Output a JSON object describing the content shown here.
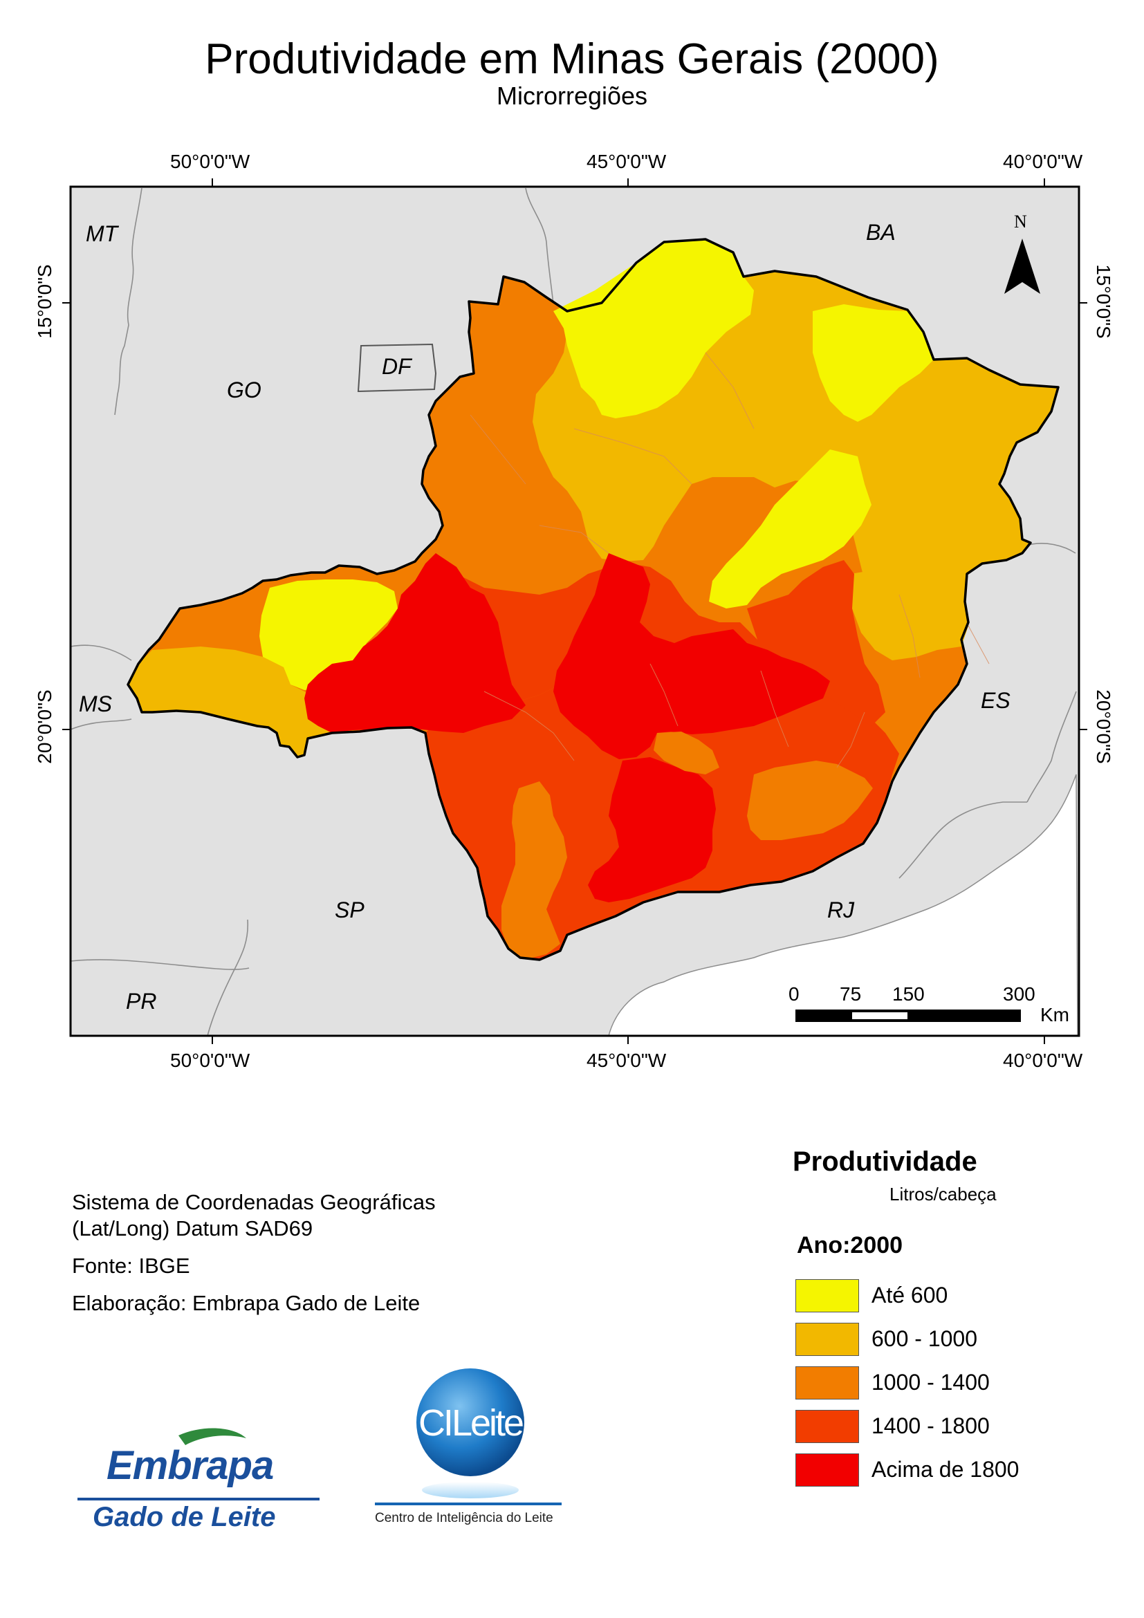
{
  "title": "Produtividade em Minas Gerais (2000)",
  "subtitle": "Microrregiões",
  "grid": {
    "top_lon": [
      "50°0'0\"W",
      "45°0'0\"W",
      "40°0'0\"W"
    ],
    "bottom_lon": [
      "50°0'0\"W",
      "45°0'0\"W",
      "40°0'0\"W"
    ],
    "left_lat": [
      "15°0'0\"S",
      "20°0'0\"S"
    ],
    "right_lat": [
      "15°0'0\"S",
      "20°0'0\"S"
    ]
  },
  "states": {
    "mt": "MT",
    "ba": "BA",
    "go": "GO",
    "df": "DF",
    "ms": "MS",
    "es": "ES",
    "sp": "SP",
    "rj": "RJ",
    "pr": "PR"
  },
  "north_arrow": {
    "label": "N"
  },
  "scale_bar": {
    "ticks": [
      "0",
      "75",
      "150",
      "300"
    ],
    "unit": "Km"
  },
  "info": {
    "coord_system_line1": "Sistema de Coordenadas Geográficas",
    "coord_system_line2": "(Lat/Long) Datum SAD69",
    "source": "Fonte: IBGE",
    "credits": "Elaboração: Embrapa Gado de Leite"
  },
  "legend": {
    "title": "Produtividade",
    "unit": "Litros/cabeça",
    "year": "Ano:2000",
    "classes": [
      {
        "label": "Até 600",
        "color": "#f5f500"
      },
      {
        "label": "600 - 1000",
        "color": "#f2b800"
      },
      {
        "label": "1000 - 1400",
        "color": "#f27d00"
      },
      {
        "label": "1400 - 1800",
        "color": "#f23d00"
      },
      {
        "label": "Acima de 1800",
        "color": "#f20000"
      }
    ]
  },
  "logos": {
    "embrapa_word": "Embrapa",
    "embrapa_sub": "Gado de Leite",
    "cileite_word": "CILeite",
    "cileite_sub": "Centro de Inteligência do Leite"
  },
  "colors": {
    "map_background": "#e1e1e1",
    "border": "#000000",
    "embrapa_blue": "#1a4f9c",
    "embrapa_green": "#2f8a3c",
    "cileite_blue": "#1565b3"
  }
}
